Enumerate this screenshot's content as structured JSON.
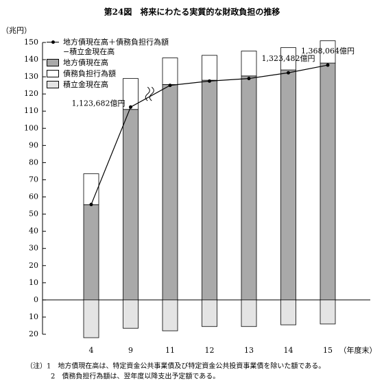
{
  "chart_data": {
    "type": "bar",
    "title": "第24図　将来にわたる実質的な財政負担の推移",
    "y_label": "（兆円）",
    "x_label": "（年度末）",
    "categories": [
      "4",
      "9",
      "11",
      "12",
      "13",
      "14",
      "15"
    ],
    "series": [
      {
        "name": "地方債現在高＋債務負担行為額−積立金現在高",
        "type": "line",
        "color": "#000000",
        "values": [
          55.6,
          112.3682,
          125,
          127.5,
          129,
          132.3482,
          136.8064
        ],
        "value_labels": [
          null,
          "1,123,682億円",
          null,
          null,
          null,
          "1,323,482億円",
          "1,368,064億円"
        ]
      },
      {
        "name": "地方債現在高",
        "type": "bar",
        "color": "#a9a9a9",
        "values": [
          55.5,
          111,
          125.5,
          128,
          130.5,
          134,
          138
        ]
      },
      {
        "name": "債務負担行為額",
        "type": "bar",
        "color": "#ffffff",
        "values": [
          18,
          18,
          15.5,
          14.5,
          14.5,
          13,
          13
        ]
      },
      {
        "name": "積立金現在高",
        "type": "bar",
        "color": "#e4e4e4",
        "values": [
          -22,
          -16.5,
          -18,
          -15.5,
          -15.5,
          -14.5,
          -14
        ]
      }
    ],
    "ylim": [
      -20,
      150
    ],
    "yticks": [
      {
        "value": -20,
        "label": "20"
      },
      {
        "value": -10,
        "label": "10"
      },
      0,
      10,
      20,
      30,
      40,
      50,
      60,
      70,
      80,
      90,
      100,
      110,
      120,
      130,
      140,
      150
    ],
    "notes": [
      "（注）1　地方債現在高は、特定資金公共事業債及び特定資金公共投資事業債を除いた額である。",
      "2　債務負担行為額は、翌年度以降支出予定額である。"
    ]
  }
}
